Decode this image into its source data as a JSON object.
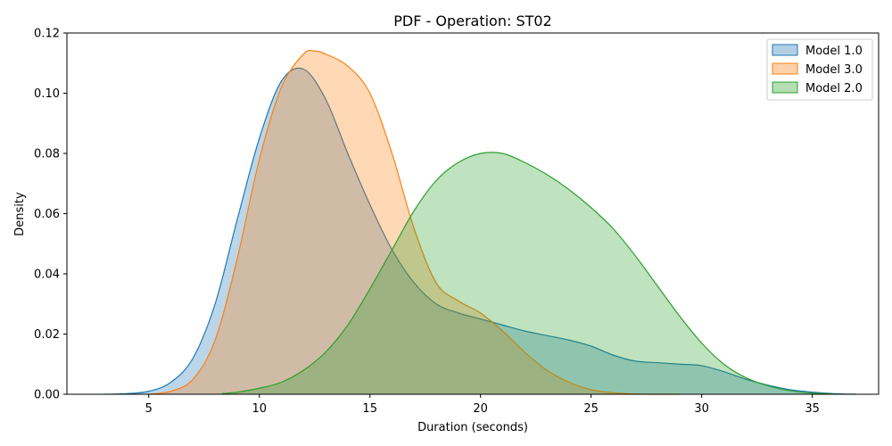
{
  "chart_data": {
    "type": "area",
    "title": "PDF - Operation: ST02",
    "xlabel": "Duration (seconds)",
    "ylabel": "Density",
    "xlim": [
      1.3,
      38.0
    ],
    "ylim": [
      0,
      0.12
    ],
    "xticks": [
      5,
      10,
      15,
      20,
      25,
      30,
      35
    ],
    "yticks": [
      0.0,
      0.02,
      0.04,
      0.06,
      0.08,
      0.1,
      0.12
    ],
    "grid": false,
    "legend_position": "top-right",
    "series": [
      {
        "name": "Model 1.0",
        "color": "#1f77b4",
        "fill": "#9ecae1",
        "x": [
          3,
          4,
          5,
          6,
          7,
          8,
          9,
          10,
          11,
          12,
          13,
          14,
          15,
          16,
          17,
          18,
          19,
          20,
          21,
          22,
          23,
          24,
          25,
          26,
          27,
          28,
          29,
          30,
          31,
          32,
          33,
          34,
          35,
          36,
          37
        ],
        "y": [
          0.0,
          0.0002,
          0.001,
          0.004,
          0.012,
          0.03,
          0.058,
          0.085,
          0.104,
          0.108,
          0.098,
          0.08,
          0.063,
          0.048,
          0.037,
          0.03,
          0.027,
          0.025,
          0.023,
          0.021,
          0.0195,
          0.018,
          0.016,
          0.013,
          0.011,
          0.0105,
          0.01,
          0.0095,
          0.0075,
          0.005,
          0.003,
          0.0015,
          0.0007,
          0.0002,
          0.0
        ]
      },
      {
        "name": "Model 3.0",
        "color": "#ff7f0e",
        "fill": "#fdbf86",
        "x": [
          5,
          6,
          7,
          8,
          9,
          10,
          11,
          12,
          12.5,
          13,
          14,
          15,
          16,
          17,
          18,
          19,
          20,
          21,
          22,
          23,
          24,
          25,
          26,
          27,
          28,
          29
        ],
        "y": [
          0.0,
          0.001,
          0.005,
          0.018,
          0.045,
          0.078,
          0.102,
          0.113,
          0.114,
          0.113,
          0.109,
          0.1,
          0.08,
          0.055,
          0.037,
          0.031,
          0.027,
          0.021,
          0.014,
          0.008,
          0.004,
          0.0015,
          0.0005,
          0.0001,
          0.0,
          0.0
        ]
      },
      {
        "name": "Model 2.0",
        "color": "#2ca02c",
        "fill": "#a8dca3",
        "x": [
          8.3,
          9,
          10,
          11,
          12,
          13,
          14,
          15,
          16,
          17,
          18,
          19,
          20,
          21,
          22,
          23,
          24,
          25,
          26,
          27,
          28,
          29,
          30,
          31,
          32,
          33,
          34,
          35,
          36
        ],
        "y": [
          0.0002,
          0.0007,
          0.002,
          0.004,
          0.008,
          0.014,
          0.023,
          0.035,
          0.048,
          0.061,
          0.071,
          0.077,
          0.08,
          0.08,
          0.077,
          0.073,
          0.068,
          0.062,
          0.055,
          0.046,
          0.036,
          0.026,
          0.017,
          0.01,
          0.0055,
          0.0028,
          0.0012,
          0.0004,
          0.0001
        ]
      }
    ]
  }
}
